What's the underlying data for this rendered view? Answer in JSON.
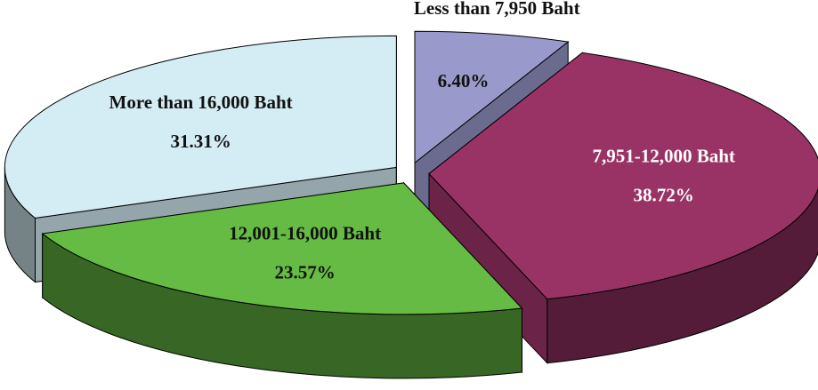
{
  "chart_data": {
    "type": "pie",
    "categories": [
      "Less than 7,950 Baht",
      "7,951-12,000 Baht",
      "12,001-16,000 Baht",
      "More than 16,000 Baht"
    ],
    "values": [
      6.4,
      38.72,
      23.57,
      31.31
    ],
    "value_labels": [
      "6.40%",
      "38.72%",
      "23.57%",
      "31.31%"
    ],
    "colors": [
      "#9999cc",
      "#993366",
      "#66bb44",
      "#d4ecf4"
    ]
  }
}
